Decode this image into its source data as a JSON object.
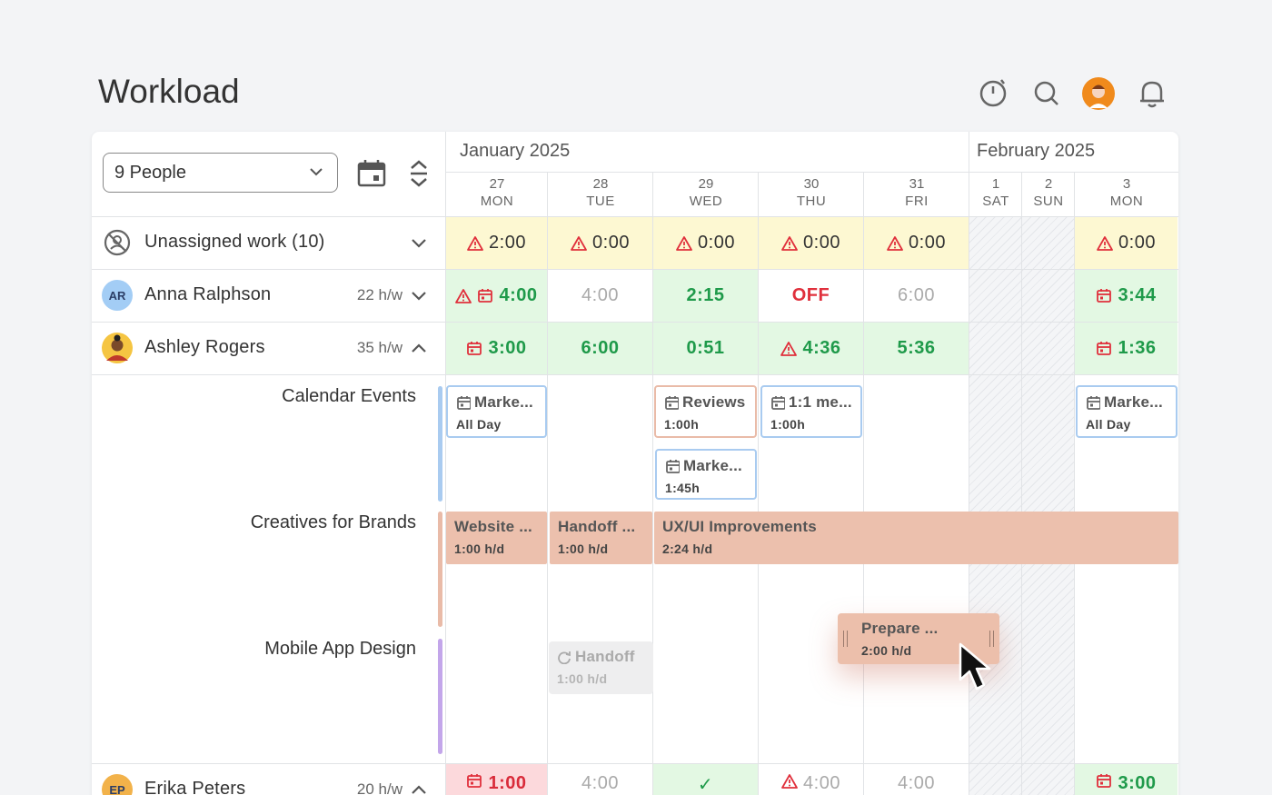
{
  "header": {
    "title": "Workload"
  },
  "toolbar": {
    "people_filter": "9 People"
  },
  "months": [
    "January 2025",
    "February 2025"
  ],
  "days": [
    {
      "date": "27",
      "weekday": "MON"
    },
    {
      "date": "28",
      "weekday": "TUE"
    },
    {
      "date": "29",
      "weekday": "WED"
    },
    {
      "date": "30",
      "weekday": "THU"
    },
    {
      "date": "31",
      "weekday": "FRI"
    },
    {
      "date": "1",
      "weekday": "SAT"
    },
    {
      "date": "2",
      "weekday": "SUN"
    },
    {
      "date": "3",
      "weekday": "MON"
    }
  ],
  "rows": [
    {
      "name": "Unassigned work (10)",
      "cells": [
        "2:00",
        "0:00",
        "0:00",
        "0:00",
        "0:00",
        null,
        null,
        "0:00"
      ]
    },
    {
      "initials": "AR",
      "name": "Anna Ralphson",
      "hours": "22 h/w",
      "cells": [
        "4:00",
        "4:00",
        "2:15",
        "OFF",
        "6:00",
        null,
        null,
        "3:44"
      ]
    },
    {
      "name": "Ashley Rogers",
      "hours": "35 h/w",
      "cells": [
        "3:00",
        "6:00",
        "0:51",
        "4:36",
        "5:36",
        null,
        null,
        "1:36"
      ]
    },
    {
      "initials": "EP",
      "name": "Erika Peters",
      "hours": "20 h/w",
      "cells": [
        "1:00",
        "4:00",
        "✓",
        "4:00",
        "4:00",
        null,
        null,
        "3:00"
      ]
    }
  ],
  "groups": [
    {
      "label": "Calendar Events",
      "items": [
        {
          "title": "Marke...",
          "detail": "All Day"
        },
        {
          "title": "Reviews",
          "detail": "1:00h"
        },
        {
          "title": "1:1 me...",
          "detail": "1:00h"
        },
        {
          "title": "Marke...",
          "detail": "1:45h"
        },
        {
          "title": "Marke...",
          "detail": "All Day"
        }
      ]
    },
    {
      "label": "Creatives for Brands",
      "items": [
        {
          "title": "Website ...",
          "detail": "1:00 h/d"
        },
        {
          "title": "Handoff ...",
          "detail": "1:00 h/d"
        },
        {
          "title": "UX/UI Improvements",
          "detail": "2:24 h/d"
        }
      ]
    },
    {
      "label": "Mobile App Design",
      "items": [
        {
          "title": "Handoff",
          "detail": "1:00 h/d"
        },
        {
          "title": "Prepare ...",
          "detail": "2:00 h/d"
        }
      ]
    }
  ]
}
